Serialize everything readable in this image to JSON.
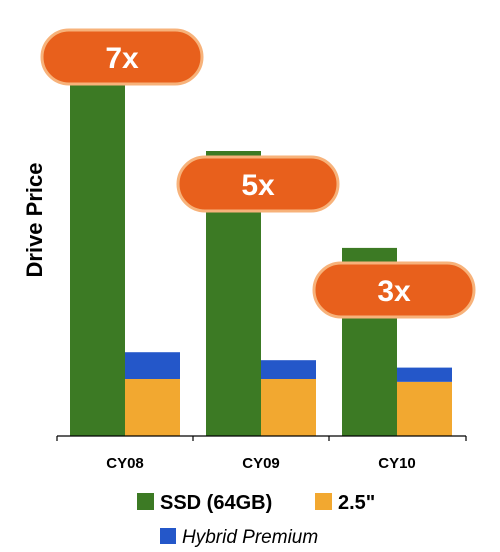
{
  "chart_data": {
    "type": "bar",
    "stacked_series": [
      "2.5\"",
      "Hybrid Premium"
    ],
    "categories": [
      "CY08",
      "CY09",
      "CY10"
    ],
    "ylabel": "Drive Price",
    "xlabel": "",
    "title": "",
    "ylim": [
      0,
      7.5
    ],
    "grid": false,
    "legend": "bottom",
    "series": [
      {
        "name": "SSD (64GB)",
        "values": [
          7.0,
          5.0,
          3.3
        ],
        "color": "#3c7a24"
      },
      {
        "name": "2.5\"",
        "values": [
          1.0,
          1.0,
          0.95
        ],
        "color": "#f2a830"
      },
      {
        "name": "Hybrid Premium",
        "values": [
          0.47,
          0.33,
          0.25
        ],
        "color": "#2457c9"
      }
    ],
    "annotations": [
      "7x",
      "5x",
      "3x"
    ],
    "annotation_color": "#e8601c",
    "annotation_border": "#f7b27a"
  }
}
